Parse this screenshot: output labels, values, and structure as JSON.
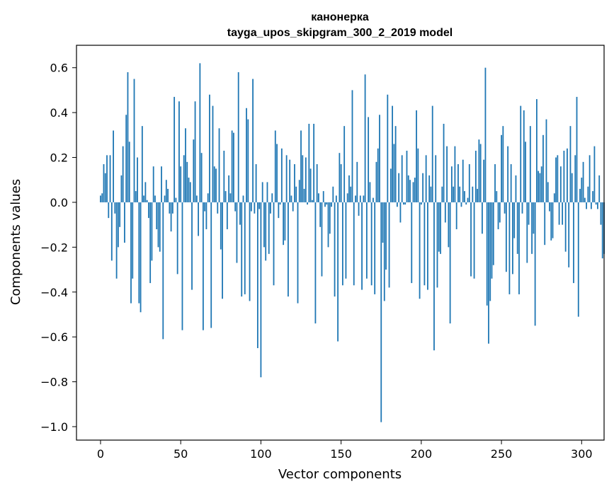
{
  "chart_data": {
    "type": "bar",
    "title": "канонерка",
    "subtitle": "tayga_upos_skipgram_300_2_2019 model",
    "xlabel": "Vector components",
    "ylabel": "Components values",
    "xlim": [
      -15,
      314
    ],
    "ylim": [
      -1.06,
      0.7
    ],
    "x_ticks": [
      0,
      50,
      100,
      150,
      200,
      250,
      300
    ],
    "x_tick_labels": [
      "0",
      "50",
      "100",
      "150",
      "200",
      "250",
      "300"
    ],
    "y_ticks": [
      0.6,
      0.4,
      0.2,
      0.0,
      -0.2,
      -0.4,
      -0.6,
      -0.8,
      -1.0
    ],
    "y_tick_labels": [
      "0.6",
      "0.4",
      "0.2",
      "0.0",
      "−0.2",
      "−0.4",
      "−0.6",
      "−0.8",
      "−1.0"
    ],
    "bar_color": "#1f77b4",
    "grid": false,
    "legend": "none",
    "values": [
      0.03,
      0.04,
      0.17,
      0.13,
      0.21,
      -0.07,
      0.21,
      -0.26,
      0.32,
      -0.05,
      -0.34,
      -0.2,
      -0.11,
      0.12,
      0.25,
      -0.18,
      0.39,
      0.58,
      0.27,
      -0.45,
      -0.34,
      0.55,
      0.05,
      0.2,
      -0.45,
      -0.49,
      0.34,
      0.03,
      0.09,
      0.01,
      -0.07,
      -0.36,
      -0.26,
      0.16,
      0.03,
      -0.12,
      -0.2,
      -0.22,
      0.16,
      -0.61,
      0.03,
      0.1,
      0.06,
      -0.05,
      -0.13,
      -0.05,
      0.47,
      0.02,
      -0.32,
      0.45,
      0.16,
      -0.57,
      0.21,
      0.33,
      0.18,
      0.11,
      0.09,
      -0.39,
      0.28,
      0.45,
      0.03,
      -0.15,
      0.62,
      0.22,
      -0.57,
      -0.04,
      -0.12,
      0.04,
      0.48,
      -0.56,
      0.43,
      0.16,
      0.15,
      -0.05,
      0.33,
      -0.21,
      -0.43,
      0.23,
      0.05,
      -0.12,
      0.12,
      0.04,
      0.32,
      0.31,
      -0.04,
      -0.27,
      0.58,
      -0.1,
      -0.42,
      0.03,
      -0.41,
      0.42,
      0.37,
      -0.44,
      -0.04,
      0.55,
      -0.05,
      0.17,
      -0.65,
      -0.03,
      -0.78,
      0.09,
      -0.2,
      -0.26,
      0.09,
      -0.23,
      -0.05,
      0.04,
      -0.37,
      0.32,
      0.26,
      -0.07,
      -0.01,
      0.24,
      -0.19,
      -0.17,
      0.21,
      -0.42,
      0.19,
      0.03,
      -0.04,
      0.17,
      0.07,
      -0.45,
      0.1,
      0.32,
      0.21,
      0.06,
      0.2,
      -0.01,
      0.35,
      0.15,
      0.01,
      0.35,
      -0.54,
      0.17,
      0.04,
      -0.11,
      -0.33,
      0.05,
      -0.02,
      -0.01,
      -0.2,
      -0.14,
      -0.02,
      0.07,
      -0.42,
      0.03,
      -0.62,
      0.22,
      0.17,
      -0.37,
      0.34,
      -0.34,
      0.04,
      0.12,
      0.07,
      0.5,
      -0.37,
      0.03,
      0.18,
      -0.06,
      0.03,
      -0.39,
      0.03,
      0.57,
      -0.34,
      0.38,
      0.09,
      -0.37,
      0.02,
      -0.41,
      0.18,
      0.24,
      0.39,
      -0.98,
      -0.18,
      -0.44,
      -0.3,
      0.48,
      -0.38,
      0.15,
      0.43,
      0.26,
      0.34,
      -0.02,
      0.13,
      -0.09,
      0.21,
      -0.01,
      -0.01,
      0.23,
      0.12,
      0.1,
      -0.36,
      0.09,
      0.11,
      0.41,
      0.24,
      -0.43,
      -0.01,
      0.13,
      -0.37,
      0.21,
      -0.39,
      0.12,
      0.07,
      0.43,
      -0.66,
      0.21,
      -0.38,
      -0.22,
      -0.23,
      0.07,
      0.35,
      -0.09,
      0.25,
      -0.2,
      -0.54,
      0.16,
      0.07,
      0.25,
      -0.12,
      0.17,
      0.07,
      -0.02,
      0.19,
      0.05,
      -0.01,
      0.02,
      0.17,
      -0.33,
      0.07,
      -0.34,
      0.23,
      0.06,
      0.28,
      0.26,
      -0.14,
      0.19,
      0.6,
      -0.46,
      -0.63,
      -0.44,
      -0.34,
      -0.28,
      0.17,
      0.05,
      -0.12,
      -0.09,
      0.3,
      0.34,
      -0.05,
      -0.31,
      0.25,
      -0.41,
      0.17,
      -0.32,
      -0.16,
      0.12,
      -0.23,
      -0.41,
      0.43,
      -0.05,
      0.41,
      0.27,
      -0.27,
      -0.1,
      0.34,
      -0.23,
      -0.14,
      -0.55,
      0.46,
      0.14,
      0.13,
      0.16,
      0.3,
      -0.19,
      0.37,
      0.09,
      -0.04,
      -0.17,
      -0.16,
      0.04,
      0.2,
      0.21,
      -0.1,
      0.16,
      -0.1,
      0.23,
      -0.22,
      0.24,
      -0.29,
      0.34,
      0.13,
      -0.36,
      0.21,
      0.47,
      -0.51,
      0.06,
      0.11,
      0.18,
      0.02,
      -0.03,
      0.07,
      0.21,
      -0.03,
      0.05,
      0.25,
      -0.01,
      -0.03,
      0.12,
      -0.1,
      -0.25,
      -0.23
    ]
  }
}
